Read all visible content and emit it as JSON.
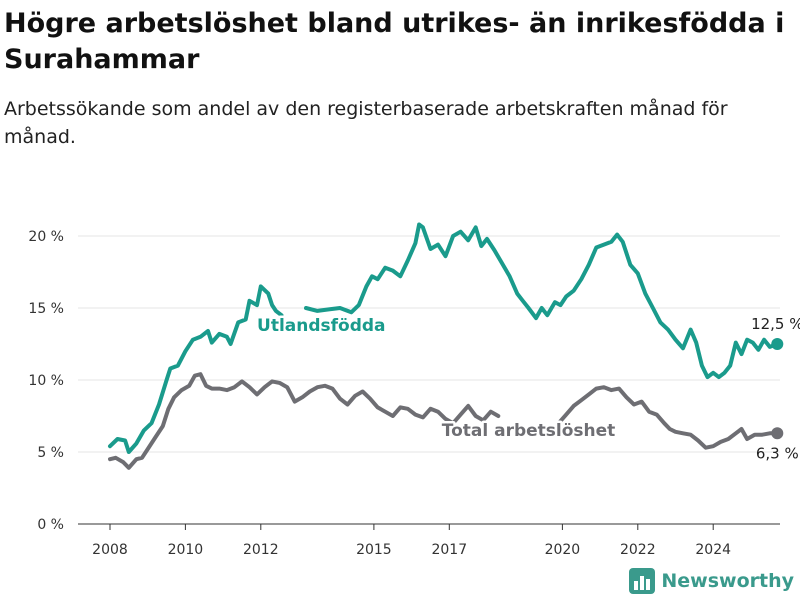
{
  "title": "Högre arbetslöshet bland utrikes- än inrikesfödda i Surahammar",
  "subtitle": "Arbetssökande som andel av den registerbaserade arbetskraften månad för månad.",
  "brand": {
    "name": "Newsworthy",
    "icon": "bar-chart-logo-icon",
    "color": "#3a9a8c"
  },
  "chart_data": {
    "type": "line",
    "title": "Högre arbetslöshet bland utrikes- än inrikesfödda i Surahammar",
    "subtitle": "Arbetssökande som andel av den registerbaserade arbetskraften månad för månad.",
    "xlabel": "",
    "ylabel": "",
    "x_unit": "year (decimal)",
    "xlim": [
      2007.2,
      2025.9
    ],
    "ylim": [
      0,
      22
    ],
    "x_ticks": [
      2008,
      2010,
      2012,
      2015,
      2017,
      2020,
      2022,
      2024
    ],
    "x_tick_labels": [
      "2008",
      "2010",
      "2012",
      "2015",
      "2017",
      "2020",
      "2022",
      "2024"
    ],
    "y_ticks": [
      0,
      5,
      10,
      15,
      20
    ],
    "y_tick_labels": [
      "0 %",
      "5 %",
      "10 %",
      "15 %",
      "20 %"
    ],
    "grid": "horizontal",
    "legend": "inline labels",
    "series": [
      {
        "name": "Utlandsfödda",
        "color": "#1a9b8c",
        "end_label": "12,5 %",
        "points": [
          [
            2008.0,
            5.4
          ],
          [
            2008.2,
            5.9
          ],
          [
            2008.4,
            5.8
          ],
          [
            2008.5,
            5.0
          ],
          [
            2008.7,
            5.6
          ],
          [
            2008.9,
            6.5
          ],
          [
            2009.1,
            7.0
          ],
          [
            2009.3,
            8.3
          ],
          [
            2009.5,
            10.0
          ],
          [
            2009.6,
            10.8
          ],
          [
            2009.8,
            11.0
          ],
          [
            2010.0,
            12.0
          ],
          [
            2010.2,
            12.8
          ],
          [
            2010.4,
            13.0
          ],
          [
            2010.6,
            13.4
          ],
          [
            2010.7,
            12.6
          ],
          [
            2010.9,
            13.2
          ],
          [
            2011.1,
            13.0
          ],
          [
            2011.2,
            12.5
          ],
          [
            2011.4,
            14.0
          ],
          [
            2011.6,
            14.2
          ],
          [
            2011.7,
            15.5
          ],
          [
            2011.9,
            15.2
          ],
          [
            2012.0,
            16.5
          ],
          [
            2012.2,
            16.0
          ],
          [
            2012.3,
            15.2
          ],
          [
            2012.4,
            14.8
          ],
          [
            2012.55,
            14.5
          ],
          null,
          [
            2013.2,
            15.0
          ],
          [
            2013.5,
            14.8
          ],
          [
            2013.8,
            14.9
          ],
          [
            2014.1,
            15.0
          ],
          [
            2014.4,
            14.7
          ],
          [
            2014.6,
            15.2
          ],
          [
            2014.8,
            16.5
          ],
          [
            2014.95,
            17.2
          ],
          [
            2015.1,
            17.0
          ],
          [
            2015.3,
            17.8
          ],
          [
            2015.5,
            17.6
          ],
          [
            2015.7,
            17.2
          ],
          [
            2015.9,
            18.3
          ],
          [
            2016.1,
            19.5
          ],
          [
            2016.2,
            20.8
          ],
          [
            2016.3,
            20.6
          ],
          [
            2016.5,
            19.1
          ],
          [
            2016.7,
            19.4
          ],
          [
            2016.9,
            18.6
          ],
          [
            2017.1,
            20.0
          ],
          [
            2017.3,
            20.3
          ],
          [
            2017.5,
            19.7
          ],
          [
            2017.7,
            20.6
          ],
          [
            2017.85,
            19.3
          ],
          [
            2018.0,
            19.8
          ],
          [
            2018.2,
            19.0
          ],
          [
            2018.4,
            18.1
          ],
          [
            2018.6,
            17.2
          ],
          [
            2018.8,
            16.0
          ],
          [
            2018.95,
            15.5
          ],
          [
            2019.1,
            15.0
          ],
          [
            2019.3,
            14.3
          ],
          [
            2019.45,
            15.0
          ],
          [
            2019.6,
            14.5
          ],
          [
            2019.8,
            15.4
          ],
          [
            2019.95,
            15.2
          ],
          [
            2020.1,
            15.8
          ],
          [
            2020.3,
            16.2
          ],
          [
            2020.5,
            17.0
          ],
          [
            2020.7,
            18.0
          ],
          [
            2020.9,
            19.2
          ],
          [
            2021.1,
            19.4
          ],
          [
            2021.3,
            19.6
          ],
          [
            2021.45,
            20.1
          ],
          [
            2021.6,
            19.6
          ],
          [
            2021.8,
            18.0
          ],
          [
            2022.0,
            17.4
          ],
          [
            2022.2,
            16.0
          ],
          [
            2022.4,
            15.0
          ],
          [
            2022.6,
            14.0
          ],
          [
            2022.8,
            13.5
          ],
          [
            2023.0,
            12.8
          ],
          [
            2023.2,
            12.2
          ],
          [
            2023.4,
            13.5
          ],
          [
            2023.55,
            12.6
          ],
          [
            2023.7,
            11.0
          ],
          [
            2023.85,
            10.2
          ],
          [
            2024.0,
            10.5
          ],
          [
            2024.15,
            10.2
          ],
          [
            2024.3,
            10.5
          ],
          [
            2024.45,
            11.0
          ],
          [
            2024.6,
            12.6
          ],
          [
            2024.75,
            11.8
          ],
          [
            2024.9,
            12.8
          ],
          [
            2025.05,
            12.6
          ],
          [
            2025.2,
            12.1
          ],
          [
            2025.35,
            12.8
          ],
          [
            2025.5,
            12.3
          ],
          [
            2025.7,
            12.5
          ]
        ]
      },
      {
        "name": "Total arbetslöshet",
        "color": "#6e6e73",
        "end_label": "6,3 %",
        "points": [
          [
            2008.0,
            4.5
          ],
          [
            2008.15,
            4.6
          ],
          [
            2008.35,
            4.3
          ],
          [
            2008.5,
            3.9
          ],
          [
            2008.7,
            4.5
          ],
          [
            2008.85,
            4.6
          ],
          [
            2009.0,
            5.2
          ],
          [
            2009.2,
            6.0
          ],
          [
            2009.4,
            6.8
          ],
          [
            2009.55,
            8.0
          ],
          [
            2009.7,
            8.8
          ],
          [
            2009.9,
            9.3
          ],
          [
            2010.1,
            9.6
          ],
          [
            2010.25,
            10.3
          ],
          [
            2010.4,
            10.4
          ],
          [
            2010.55,
            9.6
          ],
          [
            2010.7,
            9.4
          ],
          [
            2010.9,
            9.4
          ],
          [
            2011.1,
            9.3
          ],
          [
            2011.3,
            9.5
          ],
          [
            2011.5,
            9.9
          ],
          [
            2011.7,
            9.5
          ],
          [
            2011.9,
            9.0
          ],
          [
            2012.1,
            9.5
          ],
          [
            2012.3,
            9.9
          ],
          [
            2012.5,
            9.8
          ],
          [
            2012.7,
            9.5
          ],
          [
            2012.9,
            8.5
          ],
          [
            2013.1,
            8.8
          ],
          [
            2013.3,
            9.2
          ],
          [
            2013.5,
            9.5
          ],
          [
            2013.7,
            9.6
          ],
          [
            2013.9,
            9.4
          ],
          [
            2014.1,
            8.7
          ],
          [
            2014.3,
            8.3
          ],
          [
            2014.5,
            8.9
          ],
          [
            2014.7,
            9.2
          ],
          [
            2014.9,
            8.7
          ],
          [
            2015.1,
            8.1
          ],
          [
            2015.3,
            7.8
          ],
          [
            2015.5,
            7.5
          ],
          [
            2015.7,
            8.1
          ],
          [
            2015.9,
            8.0
          ],
          [
            2016.1,
            7.6
          ],
          [
            2016.3,
            7.4
          ],
          [
            2016.5,
            8.0
          ],
          [
            2016.7,
            7.8
          ],
          [
            2016.9,
            7.3
          ],
          [
            2017.1,
            7.0
          ],
          [
            2017.3,
            7.6
          ],
          [
            2017.5,
            8.2
          ],
          [
            2017.7,
            7.5
          ],
          [
            2017.9,
            7.2
          ],
          [
            2018.1,
            7.8
          ],
          [
            2018.3,
            7.5
          ],
          null,
          [
            2019.9,
            7.0
          ],
          [
            2020.1,
            7.6
          ],
          [
            2020.3,
            8.2
          ],
          [
            2020.5,
            8.6
          ],
          [
            2020.7,
            9.0
          ],
          [
            2020.9,
            9.4
          ],
          [
            2021.1,
            9.5
          ],
          [
            2021.3,
            9.3
          ],
          [
            2021.5,
            9.4
          ],
          [
            2021.7,
            8.8
          ],
          [
            2021.9,
            8.3
          ],
          [
            2022.1,
            8.5
          ],
          [
            2022.3,
            7.8
          ],
          [
            2022.5,
            7.6
          ],
          [
            2022.7,
            7.0
          ],
          [
            2022.85,
            6.6
          ],
          [
            2023.0,
            6.4
          ],
          [
            2023.2,
            6.3
          ],
          [
            2023.4,
            6.2
          ],
          [
            2023.6,
            5.8
          ],
          [
            2023.8,
            5.3
          ],
          [
            2024.0,
            5.4
          ],
          [
            2024.2,
            5.7
          ],
          [
            2024.4,
            5.9
          ],
          [
            2024.6,
            6.3
          ],
          [
            2024.75,
            6.6
          ],
          [
            2024.9,
            5.9
          ],
          [
            2025.1,
            6.2
          ],
          [
            2025.3,
            6.2
          ],
          [
            2025.5,
            6.3
          ],
          [
            2025.7,
            6.3
          ]
        ]
      }
    ]
  }
}
